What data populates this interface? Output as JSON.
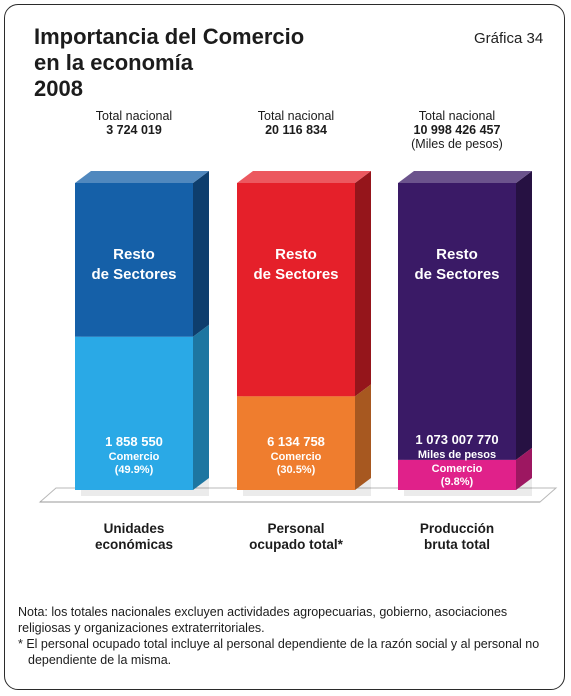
{
  "header": {
    "title_lines": [
      "Importancia del Comercio",
      "en la economía",
      "2008"
    ],
    "subtitle": "Gráfica 34"
  },
  "chart_data": {
    "type": "bar",
    "stacked": true,
    "percent_scale": true,
    "categories": [
      "Unidades económicas",
      "Personal ocupado total*",
      "Producción bruta total"
    ],
    "category_label_lines": [
      [
        "Unidades",
        "económicas"
      ],
      [
        "Personal",
        "ocupado total*"
      ],
      [
        "Producción",
        "bruta total"
      ]
    ],
    "totals": [
      {
        "lines": [
          "Total nacional",
          "3 724 019"
        ]
      },
      {
        "lines": [
          "Total nacional",
          "20 116 834"
        ]
      },
      {
        "lines": [
          "Total nacional",
          "10 998 426 457",
          "(Miles de pesos)"
        ]
      }
    ],
    "series": [
      {
        "name": "Comercio",
        "values": [
          49.9,
          30.5,
          9.8
        ],
        "labels": [
          [
            "1 858 550",
            "Comercio",
            "(49.9%)"
          ],
          [
            "6 134 758",
            "Comercio",
            "(30.5%)"
          ],
          [
            "1 073 007 770",
            "Miles de pesos",
            "Comercio",
            "(9.8%)"
          ]
        ],
        "colors": [
          "#2aa9e6",
          "#ef7d2e",
          "#e0218a"
        ]
      },
      {
        "name": "Resto de Sectores",
        "values": [
          50.1,
          69.5,
          90.2
        ],
        "labels": [
          [
            "Resto",
            "de Sectores"
          ],
          [
            "Resto",
            "de Sectores"
          ],
          [
            "Resto",
            "de Sectores"
          ]
        ],
        "colors": [
          "#1560a8",
          "#e5202a",
          "#3a1a66"
        ]
      }
    ],
    "ylim": [
      0,
      100
    ]
  },
  "footnote": {
    "note": "Nota: los totales nacionales excluyen actividades agropecuarias, gobierno, asociaciones religiosas y organizaciones extraterritoriales.",
    "asterisk": "* El personal ocupado total incluye al personal dependiente de la razón social y al personal no dependiente de la misma."
  }
}
